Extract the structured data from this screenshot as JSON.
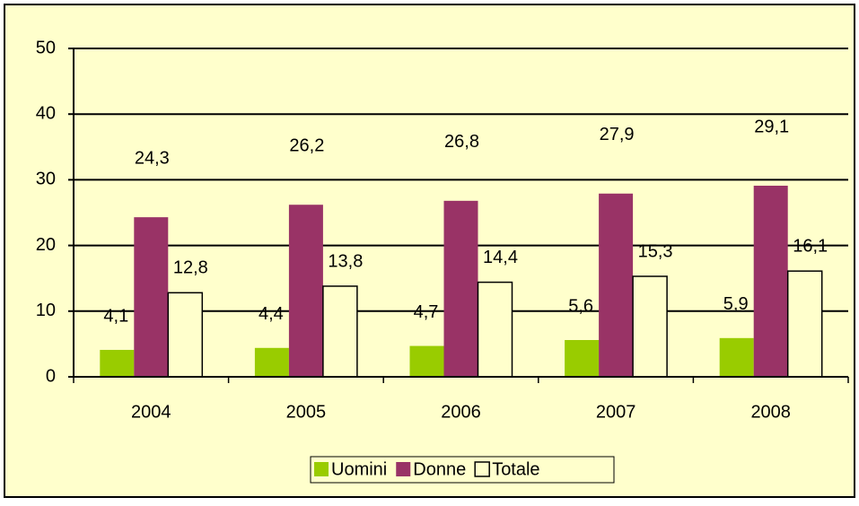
{
  "chart_data": {
    "type": "bar",
    "categories": [
      "2004",
      "2005",
      "2006",
      "2007",
      "2008"
    ],
    "series": [
      {
        "name": "Uomini",
        "color": "#99cc00",
        "values": [
          4.1,
          4.4,
          4.7,
          5.6,
          5.9
        ],
        "value_labels": [
          "4,1",
          "4,4",
          "4,7",
          "5,6",
          "5,9"
        ]
      },
      {
        "name": "Donne",
        "color": "#993366",
        "values": [
          24.3,
          26.2,
          26.8,
          27.9,
          29.1
        ],
        "value_labels": [
          "24,3",
          "26,2",
          "26,8",
          "27,9",
          "29,1"
        ]
      },
      {
        "name": "Totale",
        "color": "#ffffcc",
        "values": [
          12.8,
          13.8,
          14.4,
          15.3,
          16.1
        ],
        "value_labels": [
          "12,8",
          "13,8",
          "14,4",
          "15,3",
          "16,1"
        ]
      }
    ],
    "ylim": [
      0,
      50
    ],
    "yticks": [
      0,
      10,
      20,
      30,
      40,
      50
    ],
    "grid": true,
    "legend": "bottom"
  }
}
